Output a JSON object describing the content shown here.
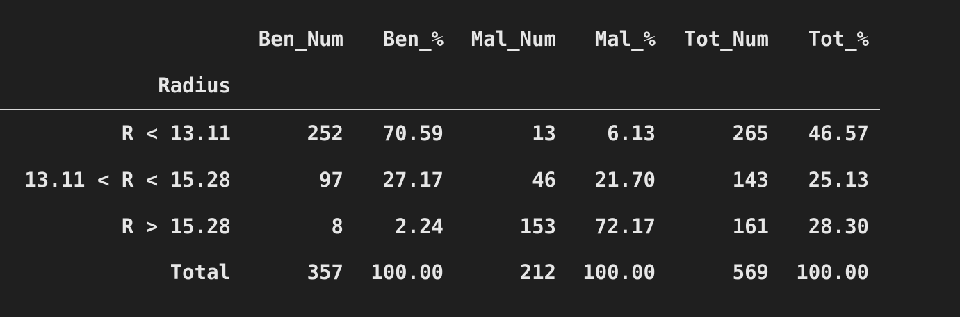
{
  "table": {
    "index_name": "Radius",
    "columns": [
      "Ben_Num",
      "Ben_%",
      "Mal_Num",
      "Mal_%",
      "Tot_Num",
      "Tot_%"
    ],
    "rows": [
      {
        "label": "R < 13.11",
        "cells": [
          "252",
          "70.59",
          "13",
          "6.13",
          "265",
          "46.57"
        ]
      },
      {
        "label": "13.11 < R < 15.28",
        "cells": [
          "97",
          "27.17",
          "46",
          "21.70",
          "143",
          "25.13"
        ]
      },
      {
        "label": "R > 15.28",
        "cells": [
          "8",
          "2.24",
          "153",
          "72.17",
          "161",
          "28.30"
        ]
      },
      {
        "label": "Total",
        "cells": [
          "357",
          "100.00",
          "212",
          "100.00",
          "569",
          "100.00"
        ]
      }
    ]
  }
}
